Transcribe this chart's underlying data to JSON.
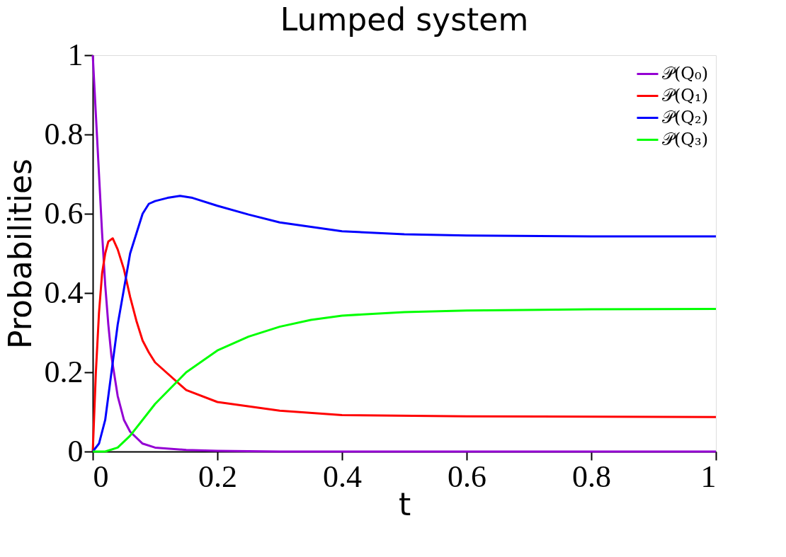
{
  "chart_data": {
    "type": "line",
    "title": "Lumped system",
    "xlabel": "t",
    "ylabel": "Probabilities",
    "xlim": [
      0,
      1
    ],
    "ylim": [
      0,
      1
    ],
    "xticks": [
      0,
      0.2,
      0.4,
      0.6,
      0.8,
      1
    ],
    "yticks": [
      0,
      0.2,
      0.4,
      0.6,
      0.8,
      1
    ],
    "grid": false,
    "legend": "top right",
    "marker": "none",
    "line_style": "solid",
    "series": [
      {
        "name": "𝒫(Q₀)",
        "color": "#9400d3",
        "x": [
          0,
          0.005,
          0.01,
          0.015,
          0.02,
          0.025,
          0.03,
          0.04,
          0.05,
          0.06,
          0.08,
          0.1,
          0.15,
          0.2,
          0.3,
          1
        ],
        "values": [
          1,
          0.85,
          0.7,
          0.55,
          0.42,
          0.32,
          0.24,
          0.14,
          0.08,
          0.05,
          0.02,
          0.01,
          0.004,
          0.002,
          0,
          0
        ]
      },
      {
        "name": "𝒫(Q₁)",
        "color": "#ff0000",
        "x": [
          0,
          0.005,
          0.01,
          0.015,
          0.02,
          0.025,
          0.032,
          0.04,
          0.05,
          0.06,
          0.07,
          0.08,
          0.09,
          0.1,
          0.15,
          0.2,
          0.3,
          0.4,
          0.6,
          1
        ],
        "values": [
          0,
          0.2,
          0.35,
          0.45,
          0.5,
          0.53,
          0.538,
          0.51,
          0.46,
          0.39,
          0.33,
          0.28,
          0.25,
          0.225,
          0.155,
          0.125,
          0.103,
          0.092,
          0.089,
          0.087
        ]
      },
      {
        "name": "𝒫(Q₂)",
        "color": "#0000ff",
        "x": [
          0,
          0.01,
          0.02,
          0.03,
          0.04,
          0.05,
          0.06,
          0.07,
          0.08,
          0.09,
          0.1,
          0.12,
          0.14,
          0.16,
          0.2,
          0.25,
          0.3,
          0.4,
          0.5,
          0.6,
          0.8,
          1
        ],
        "values": [
          0,
          0.02,
          0.08,
          0.2,
          0.32,
          0.41,
          0.5,
          0.55,
          0.6,
          0.625,
          0.632,
          0.64,
          0.645,
          0.64,
          0.62,
          0.598,
          0.578,
          0.556,
          0.548,
          0.545,
          0.543,
          0.543
        ]
      },
      {
        "name": "𝒫(Q₃)",
        "color": "#00ff00",
        "x": [
          0,
          0.02,
          0.04,
          0.06,
          0.08,
          0.1,
          0.15,
          0.2,
          0.25,
          0.3,
          0.35,
          0.4,
          0.5,
          0.6,
          0.8,
          1
        ],
        "values": [
          0,
          0,
          0.01,
          0.04,
          0.08,
          0.12,
          0.2,
          0.255,
          0.29,
          0.315,
          0.332,
          0.343,
          0.352,
          0.356,
          0.359,
          0.36
        ]
      }
    ]
  }
}
